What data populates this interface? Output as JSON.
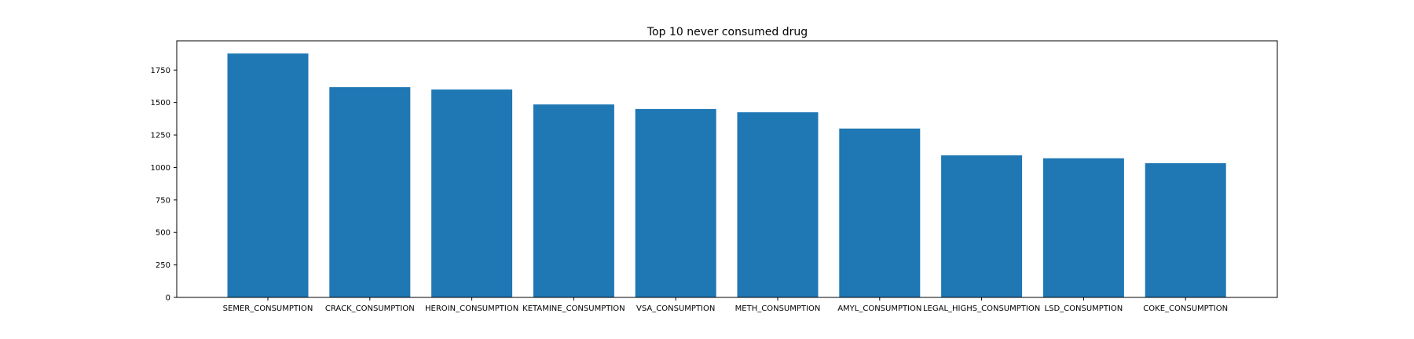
{
  "chart_data": {
    "type": "bar",
    "title": "Top 10 never consumed drug",
    "categories": [
      "SEMER_CONSUMPTION",
      "CRACK_CONSUMPTION",
      "HEROIN_CONSUMPTION",
      "KETAMINE_CONSUMPTION",
      "VSA_CONSUMPTION",
      "METH_CONSUMPTION",
      "AMYL_CONSUMPTION",
      "LEGAL_HIGHS_CONSUMPTION",
      "LSD_CONSUMPTION",
      "COKE_CONSUMPTION"
    ],
    "values": [
      1877,
      1618,
      1600,
      1485,
      1450,
      1425,
      1300,
      1094,
      1071,
      1033
    ],
    "xlabel": "",
    "ylabel": "",
    "ylim": [
      0,
      1975
    ],
    "yticks": [
      0,
      250,
      500,
      750,
      1000,
      1250,
      1500,
      1750
    ],
    "grid": false,
    "bar_color": "#1f77b4",
    "axis_color": "#000000"
  }
}
